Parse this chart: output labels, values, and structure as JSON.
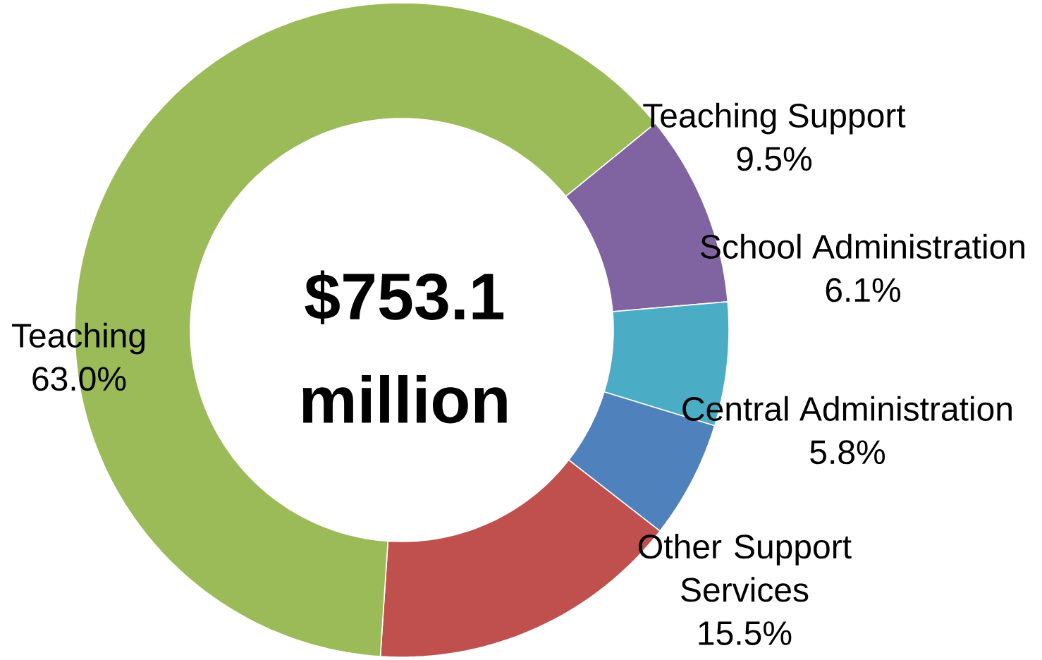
{
  "chart_data": {
    "type": "donut",
    "title": "$753.1 million",
    "categories": [
      "Teaching Support",
      "School Administration",
      "Central Administration",
      "Other Support Services",
      "Teaching"
    ],
    "values": [
      9.5,
      6.1,
      5.8,
      15.5,
      63.0
    ],
    "value_labels": [
      "9.5%",
      "6.1%",
      "5.8%",
      "15.5%",
      "63.0%"
    ],
    "colors": [
      "#8064a2",
      "#4bacc6",
      "#4f81bd",
      "#c0504d",
      "#9bbb59"
    ]
  }
}
